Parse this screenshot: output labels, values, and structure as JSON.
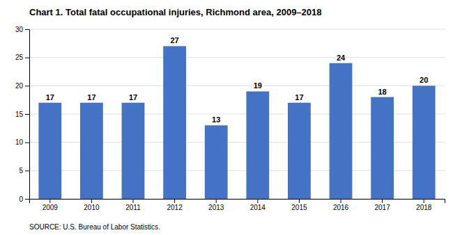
{
  "chart_data": {
    "type": "bar",
    "title": "Chart 1. Total fatal occupational injuries, Richmond area, 2009–2018",
    "source": "SOURCE: U.S. Bureau of Labor Statistics.",
    "categories": [
      "2009",
      "2010",
      "2011",
      "2012",
      "2013",
      "2014",
      "2015",
      "2016",
      "2017",
      "2018"
    ],
    "values": [
      17,
      17,
      17,
      27,
      13,
      19,
      17,
      24,
      18,
      20
    ],
    "color": "#4472C4",
    "ylim": [
      0,
      30
    ],
    "yticks": [
      0,
      5,
      10,
      15,
      20,
      25,
      30
    ],
    "grid": true,
    "data_labels": true
  }
}
